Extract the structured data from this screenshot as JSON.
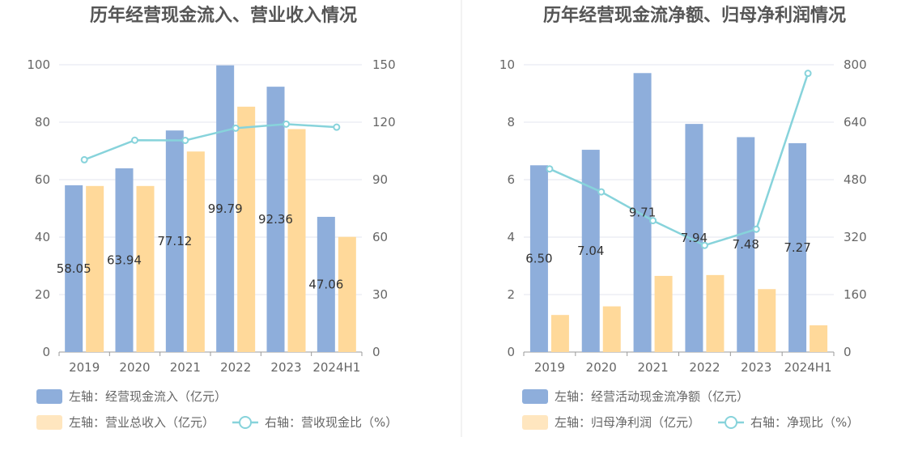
{
  "colors": {
    "bar_primary": "#8eaedb",
    "bar_secondary": "#ffd99a",
    "legend_secondary": "#ffe6bf",
    "line": "#87d3db",
    "grid": "#e3e6ef",
    "axis": "#999999",
    "divider": "#e6e6e6"
  },
  "chart_data": [
    {
      "type": "bar",
      "title": "历年经营现金流入、营业收入情况",
      "categories": [
        "2019",
        "2020",
        "2021",
        "2022",
        "2023",
        "2024H1"
      ],
      "y_left": {
        "min": 0,
        "max": 100,
        "ticks": [
          "0",
          "20",
          "40",
          "60",
          "80",
          "100"
        ]
      },
      "y_right": {
        "min": 0,
        "max": 150,
        "ticks": [
          "0",
          "30",
          "60",
          "90",
          "120",
          "150"
        ]
      },
      "grid": true,
      "legend_position": "bottom-left",
      "series": [
        {
          "name": "左轴：经营现金流入（亿元）",
          "kind": "bar",
          "axis": "left",
          "values": [
            58.05,
            63.94,
            77.12,
            99.79,
            92.36,
            47.06
          ],
          "labels": [
            "58.05",
            "63.94",
            "77.12",
            "99.79",
            "92.36",
            "47.06"
          ]
        },
        {
          "name": "左轴：营业总收入（亿元）",
          "kind": "bar",
          "axis": "left",
          "values": [
            57.8,
            57.8,
            69.8,
            85.4,
            77.6,
            40.1
          ]
        },
        {
          "name": "右轴：营收现金比（%）",
          "kind": "line",
          "axis": "right",
          "values": [
            100.4,
            110.6,
            110.5,
            116.9,
            119.0,
            117.4
          ]
        }
      ]
    },
    {
      "type": "bar",
      "title": "历年经营现金流净额、归母净利润情况",
      "categories": [
        "2019",
        "2020",
        "2021",
        "2022",
        "2023",
        "2024H1"
      ],
      "y_left": {
        "min": 0,
        "max": 10,
        "ticks": [
          "0",
          "2",
          "4",
          "6",
          "8",
          "10"
        ]
      },
      "y_right": {
        "min": 0,
        "max": 800,
        "ticks": [
          "0",
          "160",
          "320",
          "480",
          "640",
          "800"
        ]
      },
      "grid": true,
      "legend_position": "bottom-left",
      "series": [
        {
          "name": "左轴：经营活动现金流净额（亿元）",
          "kind": "bar",
          "axis": "left",
          "values": [
            6.5,
            7.04,
            9.71,
            7.94,
            7.48,
            7.27
          ],
          "labels": [
            "6.50",
            "7.04",
            "9.71",
            "7.94",
            "7.48",
            "7.27"
          ]
        },
        {
          "name": "左轴：归母净利润（亿元）",
          "kind": "bar",
          "axis": "left",
          "values": [
            1.29,
            1.59,
            2.65,
            2.68,
            2.19,
            0.93
          ]
        },
        {
          "name": "右轴：净现比（%）",
          "kind": "line",
          "axis": "right",
          "values": [
            510,
            446,
            366,
            297,
            342,
            776
          ]
        }
      ]
    }
  ]
}
